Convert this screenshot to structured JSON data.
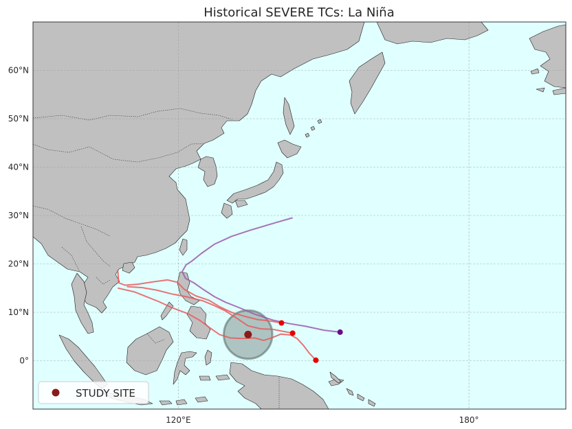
{
  "title": "Historical SEVERE TCs: La Niña",
  "colors": {
    "ocean": "#e0ffff",
    "land": "#c0c0c0",
    "track_red": "#e85a5a",
    "track_purple": "#9b5aa8",
    "genesis_red": "#e60000",
    "genesis_purple": "#6a0d83",
    "study_site": "#8b1a1a",
    "buffer": "#7a8a85"
  },
  "chart_data": {
    "type": "map",
    "projection": "PlateCarree",
    "extent": {
      "lon": [
        90,
        200
      ],
      "lat": [
        -10,
        70
      ]
    },
    "gridlines": true,
    "x_ticks": [
      {
        "lon": 120,
        "label": "120°E"
      },
      {
        "lon": 180,
        "label": "180°"
      }
    ],
    "y_ticks": [
      {
        "lat": 0,
        "label": "0°"
      },
      {
        "lat": 10,
        "label": "10°N"
      },
      {
        "lat": 20,
        "label": "20°N"
      },
      {
        "lat": 30,
        "label": "30°N"
      },
      {
        "lat": 40,
        "label": "40°N"
      },
      {
        "lat": 50,
        "label": "50°N"
      },
      {
        "lat": 60,
        "label": "60°N"
      }
    ],
    "study_site": {
      "lon": 134.4,
      "lat": 5.4,
      "label": "STUDY SITE",
      "buffer_radius_deg": 5
    },
    "legend": {
      "placement": "lower-left",
      "entries": [
        "STUDY SITE"
      ]
    },
    "tracks": [
      {
        "color": "red",
        "genesis": [
          148.4,
          0.1
        ],
        "points": [
          [
            148.4,
            0.1
          ],
          [
            147,
            1.6
          ],
          [
            145.8,
            3.2
          ],
          [
            144.5,
            4.6
          ],
          [
            143.2,
            5.3
          ],
          [
            141.2,
            5.5
          ],
          [
            139.2,
            4.7
          ],
          [
            137.6,
            4.2
          ],
          [
            135.8,
            4.7
          ],
          [
            133.2,
            4.6
          ],
          [
            130.8,
            4.7
          ],
          [
            128.5,
            5.4
          ],
          [
            126.5,
            6.8
          ],
          [
            124.5,
            8.3
          ],
          [
            122,
            9.7
          ],
          [
            118.6,
            11
          ],
          [
            116,
            12.2
          ],
          [
            113.5,
            13.2
          ],
          [
            111,
            14.2
          ],
          [
            107.6,
            15
          ]
        ]
      },
      {
        "color": "red",
        "genesis": [
          143.6,
          5.7
        ],
        "points": [
          [
            143.6,
            5.7
          ],
          [
            141.5,
            6.1
          ],
          [
            139.4,
            6.5
          ],
          [
            137,
            6.6
          ],
          [
            134.4,
            7.2
          ],
          [
            132.2,
            8.7
          ],
          [
            129.7,
            10.3
          ],
          [
            127.4,
            11.4
          ],
          [
            125,
            12.4
          ],
          [
            121.7,
            13.2
          ],
          [
            118.6,
            13.8
          ],
          [
            115.5,
            14.6
          ],
          [
            112.5,
            15.1
          ],
          [
            109.5,
            15.3
          ]
        ]
      },
      {
        "color": "red",
        "genesis": [
          141.3,
          7.8
        ],
        "points": [
          [
            141.3,
            7.8
          ],
          [
            139,
            8.2
          ],
          [
            136.4,
            8.5
          ],
          [
            133.6,
            9.2
          ],
          [
            131.2,
            9.9
          ],
          [
            128.6,
            11.1
          ],
          [
            126.3,
            12.5
          ],
          [
            123.6,
            13.4
          ],
          [
            121.3,
            14.7
          ],
          [
            119.8,
            16.2
          ],
          [
            117.8,
            16.7
          ],
          [
            114.8,
            16.3
          ],
          [
            111.6,
            15.8
          ],
          [
            109,
            15.6
          ],
          [
            107.7,
            16.1
          ],
          [
            107.5,
            18.7
          ]
        ]
      },
      {
        "color": "purple",
        "genesis": [
          153.4,
          5.9
        ],
        "points": [
          [
            153.4,
            5.9
          ],
          [
            150.1,
            6.3
          ],
          [
            146.3,
            7.1
          ],
          [
            142.7,
            7.7
          ],
          [
            139.5,
            8.4
          ],
          [
            135.8,
            9.6
          ],
          [
            132.5,
            11
          ],
          [
            129.7,
            12.1
          ],
          [
            127.5,
            13.2
          ],
          [
            125.2,
            14.7
          ],
          [
            123.2,
            16.1
          ],
          [
            121.5,
            17
          ],
          [
            120.8,
            18.4
          ],
          [
            121.6,
            19.8
          ],
          [
            122.8,
            20.6
          ],
          [
            124.8,
            22.2
          ],
          [
            127.5,
            24.1
          ],
          [
            131,
            25.7
          ],
          [
            135,
            27
          ],
          [
            140,
            28.5
          ],
          [
            143.5,
            29.5
          ]
        ]
      }
    ]
  }
}
